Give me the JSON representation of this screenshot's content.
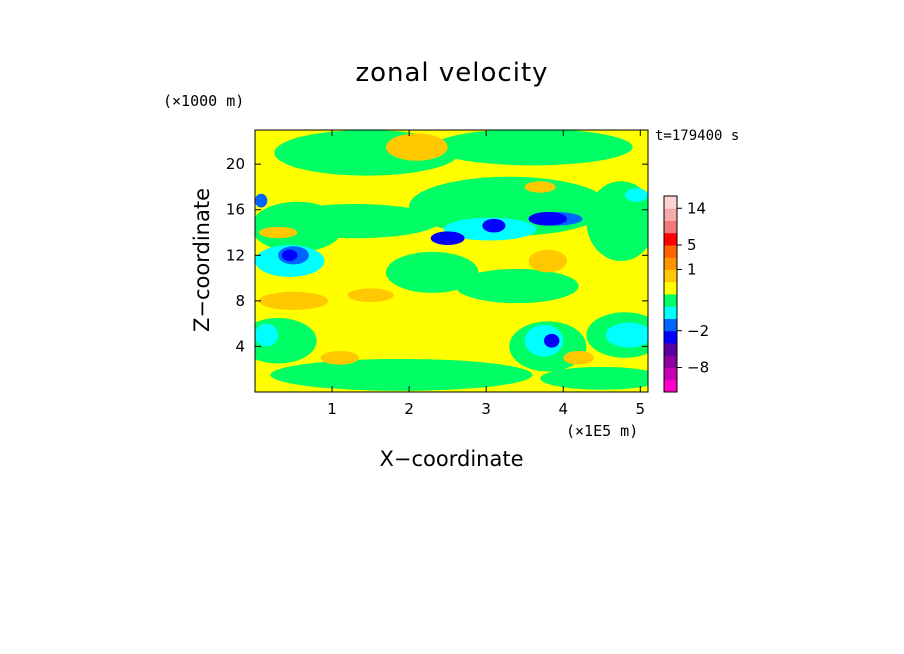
{
  "chart_data": {
    "type": "heatmap",
    "title": "zonal velocity",
    "xlabel": "X−coordinate",
    "ylabel": "Z−coordinate",
    "x_unit": "(×1E5 m)",
    "y_unit": "(×1000 m)",
    "time_label": "t=179400 s",
    "xlim": [
      0,
      5.1
    ],
    "ylim": [
      0,
      23
    ],
    "x_ticks": [
      1,
      2,
      3,
      4,
      5
    ],
    "y_ticks": [
      4,
      8,
      12,
      16,
      20
    ],
    "colorbar": {
      "tick_labels": [
        "14",
        "5",
        "1",
        "−2",
        "−8"
      ],
      "tick_values": [
        14,
        5,
        1,
        -2,
        -8
      ],
      "bands": [
        {
          "color": "#ff00c8",
          "lower": -14,
          "upper": -10
        },
        {
          "color": "#c800b4",
          "lower": -10,
          "upper": -8
        },
        {
          "color": "#8c00a0",
          "lower": -8,
          "upper": -6
        },
        {
          "color": "#5a00a0",
          "lower": -6,
          "upper": -4
        },
        {
          "color": "#0000ff",
          "lower": -4,
          "upper": -2
        },
        {
          "color": "#0064ff",
          "lower": -2,
          "upper": -1
        },
        {
          "color": "#00ffff",
          "lower": -1,
          "upper": -0.5
        },
        {
          "color": "#00ff64",
          "lower": -0.5,
          "upper": 0
        },
        {
          "color": "#ffff00",
          "lower": 0,
          "upper": 0.5
        },
        {
          "color": "#ffc800",
          "lower": 0.5,
          "upper": 1
        },
        {
          "color": "#ff9600",
          "lower": 1,
          "upper": 2
        },
        {
          "color": "#ff6400",
          "lower": 2,
          "upper": 5
        },
        {
          "color": "#ff0000",
          "lower": 5,
          "upper": 8
        },
        {
          "color": "#f07878",
          "lower": 8,
          "upper": 11
        },
        {
          "color": "#f5aaaa",
          "lower": 11,
          "upper": 14
        },
        {
          "color": "#ffd2d2",
          "lower": 14,
          "upper": 17
        }
      ]
    },
    "field": {
      "background_color": "#ffff00",
      "regions": [
        {
          "level": "green",
          "color": "#00ff64",
          "cx": 1.45,
          "cz": 21.0,
          "rx": 1.2,
          "rz": 2.0
        },
        {
          "level": "green",
          "color": "#00ff64",
          "cx": 3.6,
          "cz": 21.5,
          "rx": 1.3,
          "rz": 1.6
        },
        {
          "level": "green",
          "color": "#00ff64",
          "cx": 0.55,
          "cz": 14.5,
          "rx": 0.6,
          "rz": 2.2
        },
        {
          "level": "green",
          "color": "#00ff64",
          "cx": 1.3,
          "cz": 15.0,
          "rx": 1.1,
          "rz": 1.5
        },
        {
          "level": "green",
          "color": "#00ff64",
          "cx": 3.3,
          "cz": 16.3,
          "rx": 1.3,
          "rz": 2.6
        },
        {
          "level": "green",
          "color": "#00ff64",
          "cx": 4.75,
          "cz": 15.0,
          "rx": 0.45,
          "rz": 3.5
        },
        {
          "level": "green",
          "color": "#00ff64",
          "cx": 2.3,
          "cz": 10.5,
          "rx": 0.6,
          "rz": 1.8
        },
        {
          "level": "green",
          "color": "#00ff64",
          "cx": 3.4,
          "cz": 9.3,
          "rx": 0.8,
          "rz": 1.5
        },
        {
          "level": "green",
          "color": "#00ff64",
          "cx": 0.3,
          "cz": 4.5,
          "rx": 0.5,
          "rz": 2.0
        },
        {
          "level": "green",
          "color": "#00ff64",
          "cx": 1.9,
          "cz": 1.5,
          "rx": 1.7,
          "rz": 1.4
        },
        {
          "level": "green",
          "color": "#00ff64",
          "cx": 3.8,
          "cz": 4.0,
          "rx": 0.5,
          "rz": 2.2
        },
        {
          "level": "green",
          "color": "#00ff64",
          "cx": 4.8,
          "cz": 5.0,
          "rx": 0.5,
          "rz": 2.0
        },
        {
          "level": "green",
          "color": "#00ff64",
          "cx": 4.5,
          "cz": 1.2,
          "rx": 0.8,
          "rz": 1.0
        },
        {
          "level": "cyan",
          "color": "#00ffff",
          "cx": 0.45,
          "cz": 11.5,
          "rx": 0.45,
          "rz": 1.4
        },
        {
          "level": "cyan",
          "color": "#00ffff",
          "cx": 3.05,
          "cz": 14.3,
          "rx": 0.6,
          "rz": 1.0
        },
        {
          "level": "cyan",
          "color": "#00ffff",
          "cx": 3.75,
          "cz": 4.5,
          "rx": 0.25,
          "rz": 1.4
        },
        {
          "level": "cyan",
          "color": "#00ffff",
          "cx": 4.85,
          "cz": 5.0,
          "rx": 0.3,
          "rz": 1.1
        },
        {
          "level": "cyan",
          "color": "#00ffff",
          "cx": 0.15,
          "cz": 5.0,
          "rx": 0.15,
          "rz": 1.0
        },
        {
          "level": "cyan",
          "color": "#00ffff",
          "cx": 4.95,
          "cz": 17.3,
          "rx": 0.15,
          "rz": 0.6
        },
        {
          "level": "blue",
          "color": "#0064ff",
          "cx": 0.5,
          "cz": 12.0,
          "rx": 0.2,
          "rz": 0.8
        },
        {
          "level": "blue",
          "color": "#0064ff",
          "cx": 3.9,
          "cz": 15.2,
          "rx": 0.35,
          "rz": 0.6
        },
        {
          "level": "blue",
          "color": "#0064ff",
          "cx": 0.08,
          "cz": 16.8,
          "rx": 0.08,
          "rz": 0.6
        },
        {
          "level": "dark",
          "color": "#0000ff",
          "cx": 2.5,
          "cz": 13.5,
          "rx": 0.22,
          "rz": 0.6
        },
        {
          "level": "dark",
          "color": "#0000ff",
          "cx": 3.1,
          "cz": 14.6,
          "rx": 0.15,
          "rz": 0.6
        },
        {
          "level": "dark",
          "color": "#0000ff",
          "cx": 3.8,
          "cz": 15.2,
          "rx": 0.25,
          "rz": 0.6
        },
        {
          "level": "dark",
          "color": "#0000ff",
          "cx": 0.45,
          "cz": 12.0,
          "rx": 0.1,
          "rz": 0.5
        },
        {
          "level": "dark",
          "color": "#0000ff",
          "cx": 3.85,
          "cz": 4.5,
          "rx": 0.1,
          "rz": 0.6
        },
        {
          "level": "orange",
          "color": "#ffc800",
          "cx": 0.5,
          "cz": 8.0,
          "rx": 0.45,
          "rz": 0.8
        },
        {
          "level": "orange",
          "color": "#ffc800",
          "cx": 1.5,
          "cz": 8.5,
          "rx": 0.3,
          "rz": 0.6
        },
        {
          "level": "orange",
          "color": "#ffc800",
          "cx": 3.8,
          "cz": 11.5,
          "rx": 0.25,
          "rz": 1.0
        },
        {
          "level": "orange",
          "color": "#ffc800",
          "cx": 0.3,
          "cz": 14.0,
          "rx": 0.25,
          "rz": 0.5
        },
        {
          "level": "orange",
          "color": "#ffc800",
          "cx": 2.1,
          "cz": 21.5,
          "rx": 0.4,
          "rz": 1.2
        },
        {
          "level": "orange",
          "color": "#ffc800",
          "cx": 3.7,
          "cz": 18.0,
          "rx": 0.2,
          "rz": 0.5
        },
        {
          "level": "orange",
          "color": "#ffc800",
          "cx": 1.1,
          "cz": 3.0,
          "rx": 0.25,
          "rz": 0.6
        },
        {
          "level": "orange",
          "color": "#ffc800",
          "cx": 4.2,
          "cz": 3.0,
          "rx": 0.2,
          "rz": 0.6
        }
      ]
    }
  }
}
